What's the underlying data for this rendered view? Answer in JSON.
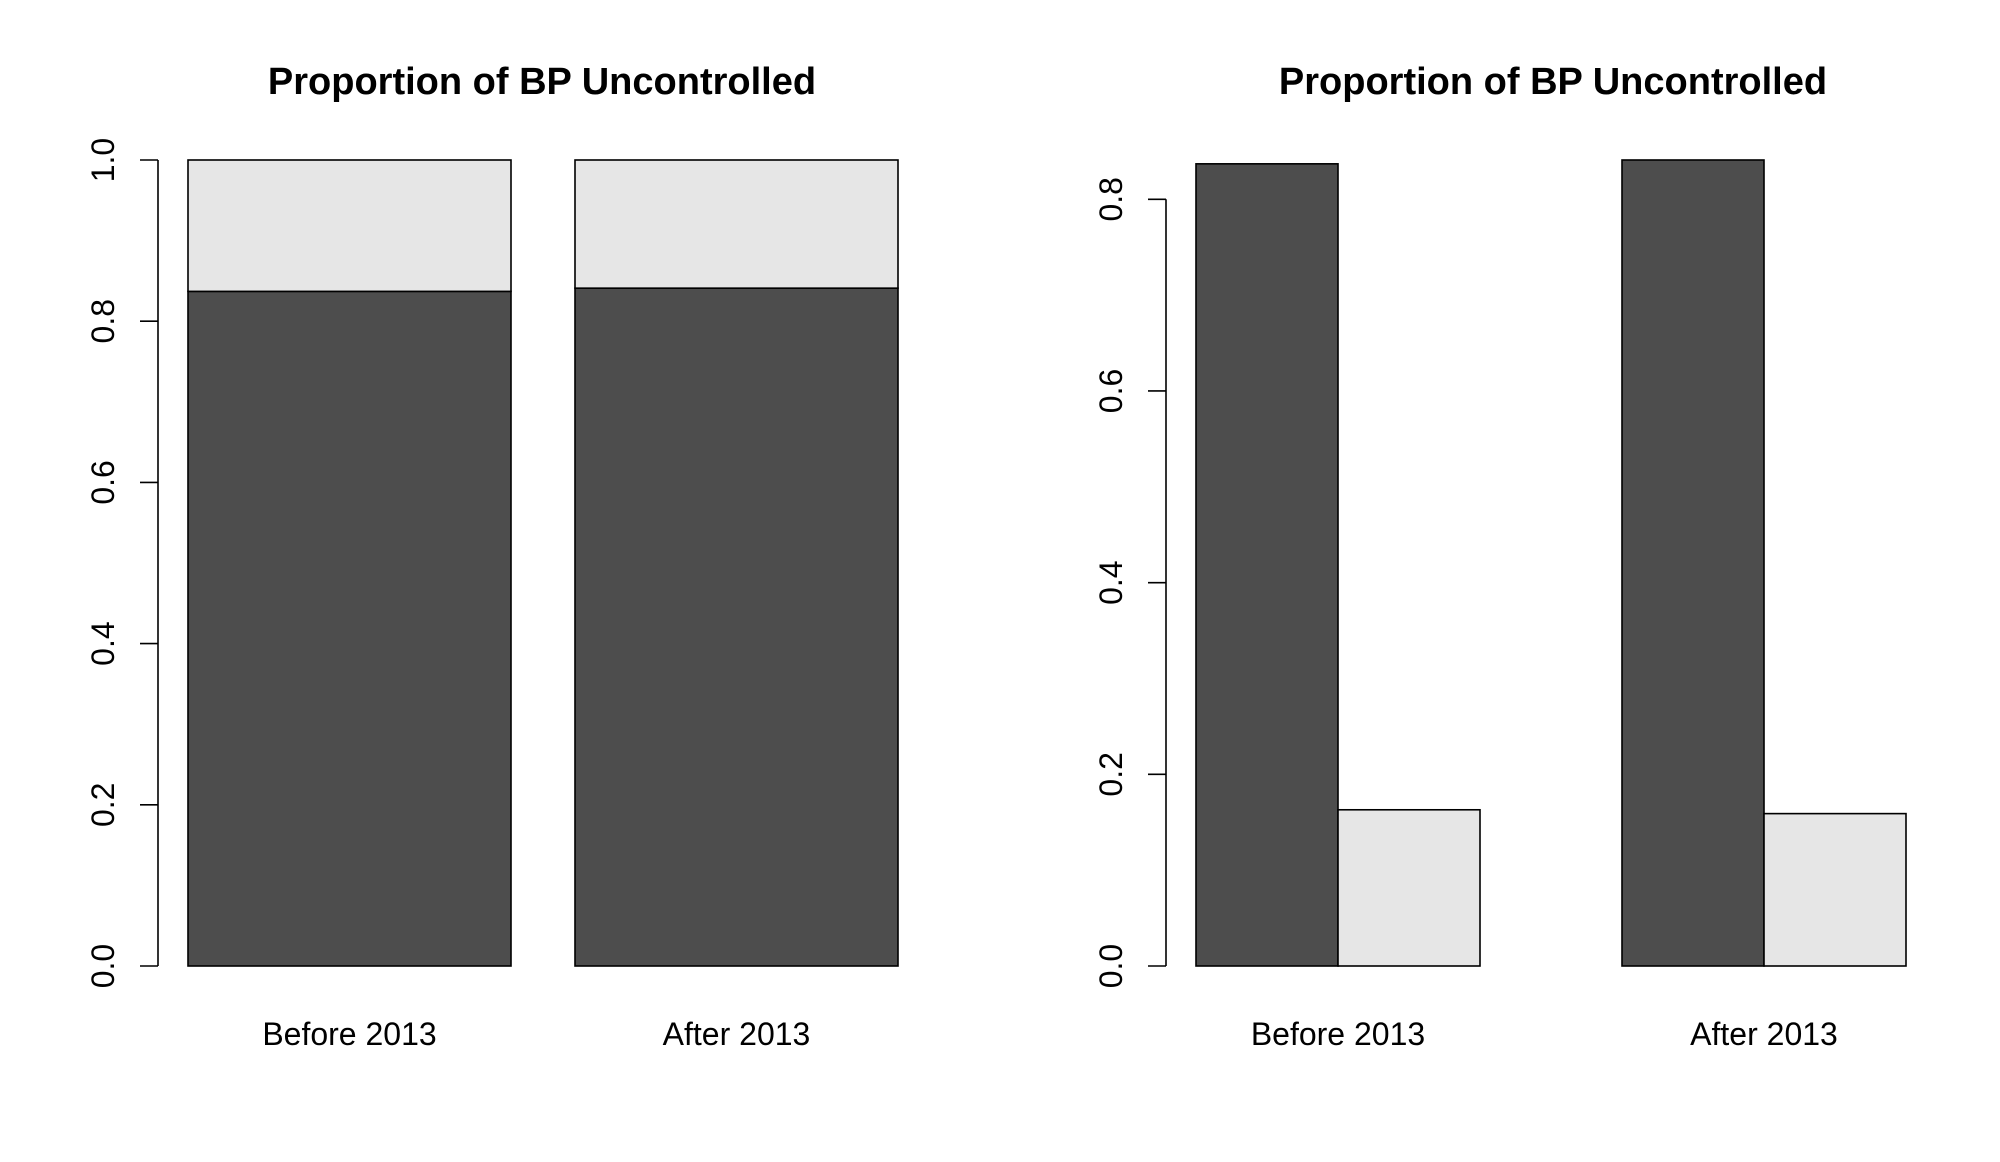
{
  "chart_data": [
    {
      "type": "bar",
      "stacked": true,
      "title": "Proportion of BP Uncontrolled",
      "categories": [
        "Before 2013",
        "After 2013"
      ],
      "series": [
        {
          "values": [
            0.837,
            0.841
          ],
          "color": "#4d4d4d"
        },
        {
          "values": [
            0.163,
            0.159
          ],
          "color": "#e6e6e6"
        }
      ],
      "ylim": [
        0,
        1.0
      ],
      "yticks": [
        "0.0",
        "0.2",
        "0.4",
        "0.6",
        "0.8",
        "1.0"
      ],
      "xlabel": "",
      "ylabel": "",
      "grid": false,
      "legend": "none"
    },
    {
      "type": "bar",
      "stacked": false,
      "title": "Proportion of BP Uncontrolled",
      "categories": [
        "Before 2013",
        "After 2013"
      ],
      "series": [
        {
          "values": [
            0.837,
            0.841
          ],
          "color": "#4d4d4d"
        },
        {
          "values": [
            0.163,
            0.159
          ],
          "color": "#e6e6e6"
        }
      ],
      "ylim": [
        0,
        0.841
      ],
      "yticks": [
        "0.0",
        "0.2",
        "0.4",
        "0.6",
        "0.8"
      ],
      "xlabel": "",
      "ylabel": "",
      "grid": false,
      "legend": "none"
    }
  ]
}
